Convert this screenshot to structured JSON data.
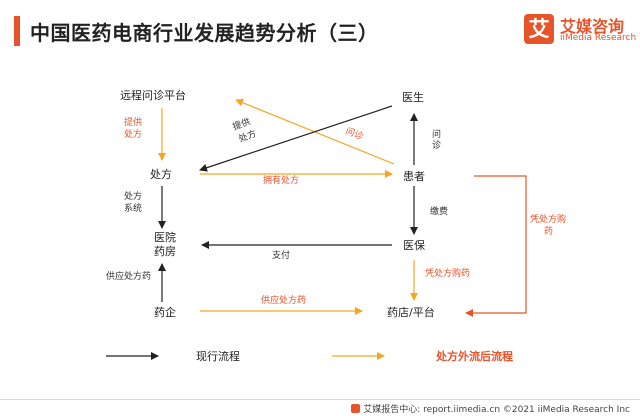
{
  "header": {
    "title": "中国医药电商行业发展趋势分析（三）",
    "logo_glyph": "艾",
    "logo_cn": "艾媒咨询",
    "logo_en": "iiMedia Research",
    "accent_color": "#e8542a"
  },
  "nodes": {
    "remote": "远程问诊平台",
    "doctor": "医生",
    "prescription": "处方",
    "patient": "患者",
    "hospital_l1": "医院",
    "hospital_l2": "药房",
    "insurance": "医保",
    "pharma": "药企",
    "pharmacy": "药店/平台"
  },
  "edges": {
    "provide_rx_orange_l1": "提供",
    "provide_rx_orange_l2": "处方",
    "provide_rx_dark_l1": "提供",
    "provide_rx_dark_l2": "处方",
    "consult_orange": "问诊",
    "consult_dark_l1": "问",
    "consult_dark_l2": "诊",
    "hold_rx": "拥有处方",
    "rx_system_l1": "处方",
    "rx_system_l2": "系统",
    "pay_fee": "缴费",
    "pay": "支付",
    "rx_buy_right_l1": "凭处方购",
    "rx_buy_right_l2": "药",
    "rx_buy": "凭处方购药",
    "supply_left": "供应处方药",
    "supply_bottom": "供应处方药"
  },
  "legend": {
    "current": "现行流程",
    "outflow": "处方外流后流程"
  },
  "footer": {
    "text": "艾媒报告中心: report.iimedia.cn  ©2021  iiMedia Research  Inc"
  }
}
